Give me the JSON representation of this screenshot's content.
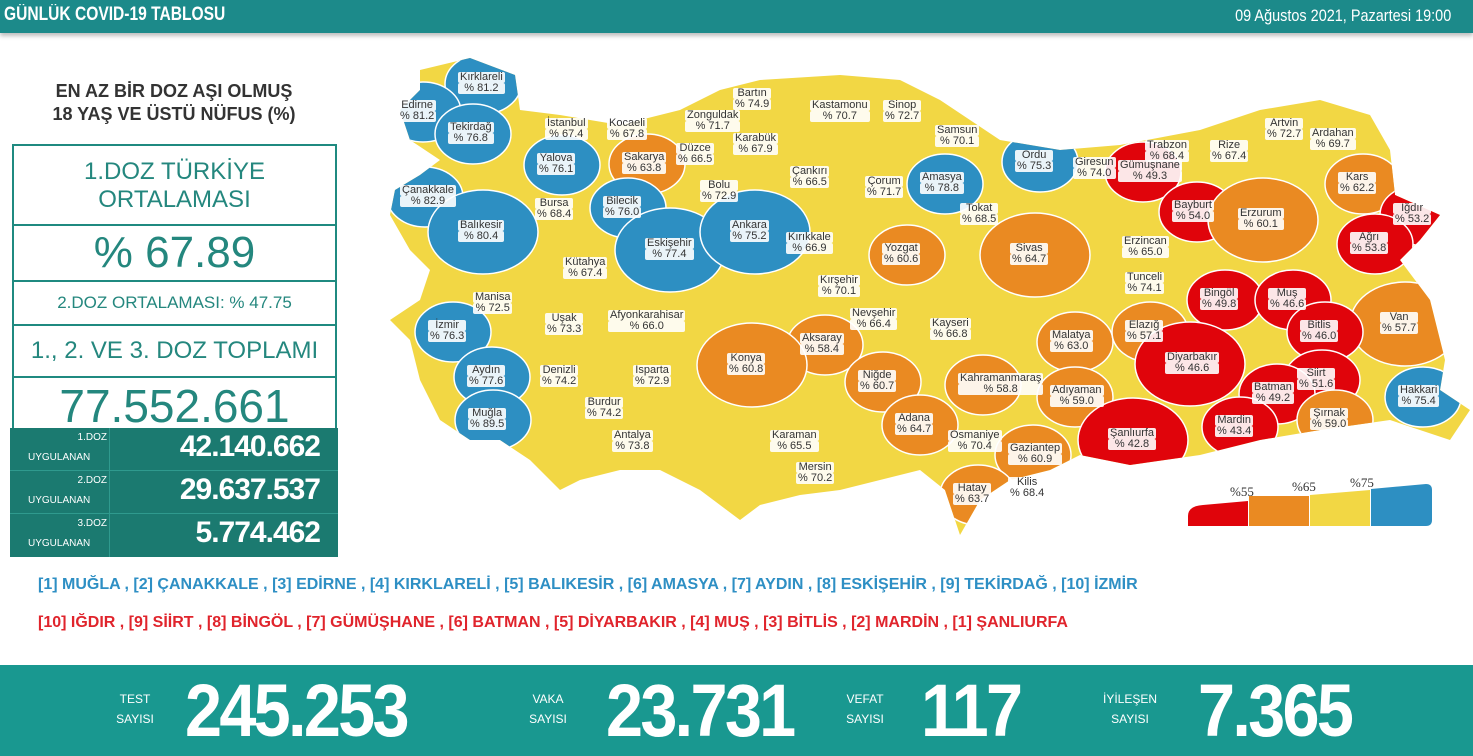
{
  "header": {
    "title": "GÜNLÜK COVID-19 TABLOSU",
    "datetime": "09 Ağustos 2021, Pazartesi 19:00"
  },
  "left": {
    "title_line1": "EN AZ BİR DOZ AŞI OLMUŞ",
    "title_line2": "18 YAŞ VE ÜSTÜ NÜFUS (%)",
    "avg_label_line1": "1.DOZ TÜRKİYE",
    "avg_label_line2": "ORTALAMASI",
    "avg_value": "% 67.89",
    "dose2_avg": "2.DOZ ORTALAMASI: % 47.75",
    "total_label": "1., 2. VE 3. DOZ TOPLAMI",
    "total_value": "77.552.661",
    "doses": [
      {
        "label1": "1.DOZ",
        "label2": "UYGULANAN",
        "value": "42.140.662"
      },
      {
        "label1": "2.DOZ",
        "label2": "UYGULANAN",
        "value": "29.637.537"
      },
      {
        "label1": "3.DOZ",
        "label2": "UYGULANAN",
        "value": "5.774.462"
      }
    ]
  },
  "colors": {
    "red": "#e0040b",
    "orange": "#ea8a22",
    "yellow": "#f2d744",
    "blue": "#2d8fc2",
    "teal": "#1c8a8a"
  },
  "legend": {
    "ticks": [
      "%55",
      "%65",
      "%75"
    ]
  },
  "provinces": [
    {
      "name": "Kırklareli",
      "value": "% 81.2",
      "color": "blue"
    },
    {
      "name": "Edirne",
      "value": "% 81.2",
      "color": "blue"
    },
    {
      "name": "Tekirdağ",
      "value": "% 76.8",
      "color": "blue"
    },
    {
      "name": "İstanbul",
      "value": "% 67.4",
      "color": "yellow"
    },
    {
      "name": "Kocaeli",
      "value": "% 67.8",
      "color": "yellow"
    },
    {
      "name": "Zonguldak",
      "value": "% 71.7",
      "color": "yellow"
    },
    {
      "name": "Bartın",
      "value": "% 74.9",
      "color": "yellow"
    },
    {
      "name": "Kastamonu",
      "value": "% 70.7",
      "color": "yellow"
    },
    {
      "name": "Sinop",
      "value": "% 72.7",
      "color": "yellow"
    },
    {
      "name": "Samsun",
      "value": "% 70.1",
      "color": "yellow"
    },
    {
      "name": "Yalova",
      "value": "% 76.1",
      "color": "blue"
    },
    {
      "name": "Sakarya",
      "value": "% 63.8",
      "color": "orange"
    },
    {
      "name": "Düzce",
      "value": "% 66.5",
      "color": "yellow"
    },
    {
      "name": "Karabük",
      "value": "% 67.9",
      "color": "yellow"
    },
    {
      "name": "Çankırı",
      "value": "% 66.5",
      "color": "yellow"
    },
    {
      "name": "Çorum",
      "value": "% 71.7",
      "color": "yellow"
    },
    {
      "name": "Amasya",
      "value": "% 78.8",
      "color": "blue"
    },
    {
      "name": "Tokat",
      "value": "% 68.5",
      "color": "yellow"
    },
    {
      "name": "Ordu",
      "value": "% 75.3",
      "color": "blue"
    },
    {
      "name": "Giresun",
      "value": "% 74.0",
      "color": "yellow"
    },
    {
      "name": "Gümüşhane",
      "value": "% 49.3",
      "color": "red"
    },
    {
      "name": "Trabzon",
      "value": "% 68.4",
      "color": "yellow"
    },
    {
      "name": "Rize",
      "value": "% 67.4",
      "color": "yellow"
    },
    {
      "name": "Artvin",
      "value": "% 72.7",
      "color": "yellow"
    },
    {
      "name": "Ardahan",
      "value": "% 69.7",
      "color": "yellow"
    },
    {
      "name": "Kars",
      "value": "% 62.2",
      "color": "orange"
    },
    {
      "name": "Bayburt",
      "value": "% 54.0",
      "color": "red"
    },
    {
      "name": "Erzurum",
      "value": "% 60.1",
      "color": "orange"
    },
    {
      "name": "Iğdır",
      "value": "% 53.2",
      "color": "red"
    },
    {
      "name": "Ağrı",
      "value": "% 53.8",
      "color": "red"
    },
    {
      "name": "Erzincan",
      "value": "% 65.0",
      "color": "yellow"
    },
    {
      "name": "Çanakkale",
      "value": "% 82.9",
      "color": "blue"
    },
    {
      "name": "Bursa",
      "value": "% 68.4",
      "color": "yellow"
    },
    {
      "name": "Bilecik",
      "value": "% 76.0",
      "color": "blue"
    },
    {
      "name": "Bolu",
      "value": "% 72.9",
      "color": "yellow"
    },
    {
      "name": "Balıkesir",
      "value": "% 80.4",
      "color": "blue"
    },
    {
      "name": "Eskişehir",
      "value": "% 77.4",
      "color": "blue"
    },
    {
      "name": "Ankara",
      "value": "% 75.2",
      "color": "blue"
    },
    {
      "name": "Kırıkkale",
      "value": "% 66.9",
      "color": "yellow"
    },
    {
      "name": "Yozgat",
      "value": "% 60.6",
      "color": "orange"
    },
    {
      "name": "Sivas",
      "value": "% 64.7",
      "color": "orange"
    },
    {
      "name": "Kütahya",
      "value": "% 67.4",
      "color": "yellow"
    },
    {
      "name": "Manisa",
      "value": "% 72.5",
      "color": "yellow"
    },
    {
      "name": "Uşak",
      "value": "% 73.3",
      "color": "yellow"
    },
    {
      "name": "Afyonkarahisar",
      "value": "% 66.0",
      "color": "yellow"
    },
    {
      "name": "Kırşehir",
      "value": "% 70.1",
      "color": "yellow"
    },
    {
      "name": "Nevşehir",
      "value": "% 66.4",
      "color": "yellow"
    },
    {
      "name": "Kayseri",
      "value": "% 66.8",
      "color": "yellow"
    },
    {
      "name": "Tunceli",
      "value": "% 74.1",
      "color": "yellow"
    },
    {
      "name": "Bingöl",
      "value": "% 49.8",
      "color": "red"
    },
    {
      "name": "Muş",
      "value": "% 46.6",
      "color": "red"
    },
    {
      "name": "Van",
      "value": "% 57.7",
      "color": "orange"
    },
    {
      "name": "İzmir",
      "value": "% 76.3",
      "color": "blue"
    },
    {
      "name": "Aksaray",
      "value": "% 58.4",
      "color": "orange"
    },
    {
      "name": "Malatya",
      "value": "% 63.0",
      "color": "orange"
    },
    {
      "name": "Elazığ",
      "value": "% 57.1",
      "color": "orange"
    },
    {
      "name": "Bitlis",
      "value": "% 46.0",
      "color": "red"
    },
    {
      "name": "Konya",
      "value": "% 60.8",
      "color": "orange"
    },
    {
      "name": "Diyarbakır",
      "value": "% 46.6",
      "color": "red"
    },
    {
      "name": "Aydın",
      "value": "% 77.6",
      "color": "blue"
    },
    {
      "name": "Denizli",
      "value": "% 74.2",
      "color": "yellow"
    },
    {
      "name": "Isparta",
      "value": "% 72.9",
      "color": "yellow"
    },
    {
      "name": "Niğde",
      "value": "% 60.7",
      "color": "orange"
    },
    {
      "name": "Kahramanmaraş",
      "value": "% 58.8",
      "color": "orange"
    },
    {
      "name": "Adıyaman",
      "value": "% 59.0",
      "color": "orange"
    },
    {
      "name": "Siirt",
      "value": "% 51.6",
      "color": "red"
    },
    {
      "name": "Batman",
      "value": "% 49.2",
      "color": "red"
    },
    {
      "name": "Hakkari",
      "value": "% 75.4",
      "color": "blue"
    },
    {
      "name": "Burdur",
      "value": "% 74.2",
      "color": "yellow"
    },
    {
      "name": "Muğla",
      "value": "% 89.5",
      "color": "blue"
    },
    {
      "name": "Şırnak",
      "value": "% 59.0",
      "color": "orange"
    },
    {
      "name": "Adana",
      "value": "% 64.7",
      "color": "orange"
    },
    {
      "name": "Mardin",
      "value": "% 43.4",
      "color": "red"
    },
    {
      "name": "Şanlıurfa",
      "value": "% 42.8",
      "color": "red"
    },
    {
      "name": "Antalya",
      "value": "% 73.8",
      "color": "yellow"
    },
    {
      "name": "Karaman",
      "value": "% 65.5",
      "color": "yellow"
    },
    {
      "name": "Osmaniye",
      "value": "% 70.4",
      "color": "yellow"
    },
    {
      "name": "Gaziantep",
      "value": "% 60.9",
      "color": "orange"
    },
    {
      "name": "Mersin",
      "value": "% 70.2",
      "color": "yellow"
    },
    {
      "name": "Kilis",
      "value": "% 68.4",
      "color": "yellow"
    },
    {
      "name": "Hatay",
      "value": "% 63.7",
      "color": "orange"
    }
  ],
  "rankings": {
    "top": "[1] MUĞLA , [2] ÇANAKKALE , [3] EDİRNE , [4] KIRKLARELİ , [5] BALIKESİR , [6] AMASYA , [7] AYDIN , [8] ESKİŞEHİR , [9] TEKİRDAĞ , [10] İZMİR",
    "bottom": "[10] IĞDIR , [9] SİİRT , [8] BİNGÖL , [7] GÜMÜŞHANE , [6] BATMAN , [5] DİYARBAKIR , [4] MUŞ , [3] BİTLİS , [2] MARDİN , [1] ŞANLIURFA"
  },
  "stats": [
    {
      "label1": "TEST",
      "label2": "SAYISI",
      "value": "245.253"
    },
    {
      "label1": "VAKA",
      "label2": "SAYISI",
      "value": "23.731"
    },
    {
      "label1": "VEFAT",
      "label2": "SAYISI",
      "value": "117"
    },
    {
      "label1": "İYİLEŞEN",
      "label2": "SAYISI",
      "value": "7.365"
    }
  ]
}
